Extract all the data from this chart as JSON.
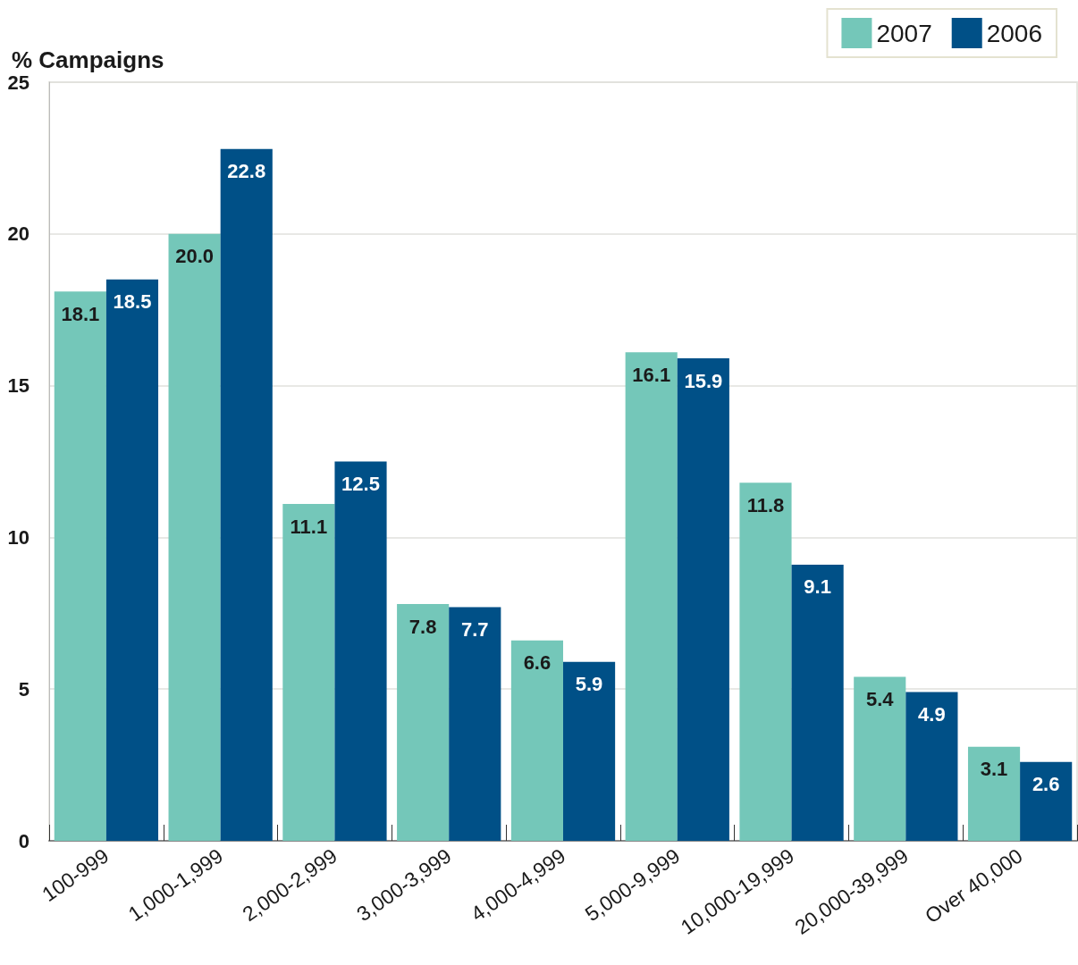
{
  "chart_data": {
    "type": "bar",
    "ylabel": "% Campaigns",
    "categories": [
      "100-999",
      "1,000-1,999",
      "2,000-2,999",
      "3,000-3,999",
      "4,000-4,999",
      "5,000-9,999",
      "10,000-19,999",
      "20,000-39,999",
      "Over 40,000"
    ],
    "series": [
      {
        "name": "2007",
        "color": "#74c7b9",
        "values": [
          18.1,
          20.0,
          11.1,
          7.8,
          6.6,
          16.1,
          11.8,
          5.4,
          3.1
        ],
        "value_labels": [
          "18.1",
          "20.0",
          "11.1",
          "7.8",
          "6.6",
          "16.1",
          "11.8",
          "5.4",
          "3.1"
        ]
      },
      {
        "name": "2006",
        "color": "#005087",
        "values": [
          18.5,
          22.8,
          12.5,
          7.7,
          5.9,
          15.9,
          9.1,
          4.9,
          2.6
        ],
        "value_labels": [
          "18.5",
          "22.8",
          "12.5",
          "7.7",
          "5.9",
          "15.9",
          "9.1",
          "4.9",
          "2.6"
        ]
      }
    ],
    "ylim": [
      0,
      25
    ],
    "yticks": [
      0,
      5,
      10,
      15,
      20,
      25
    ],
    "grid": "y",
    "legend": "top right"
  }
}
